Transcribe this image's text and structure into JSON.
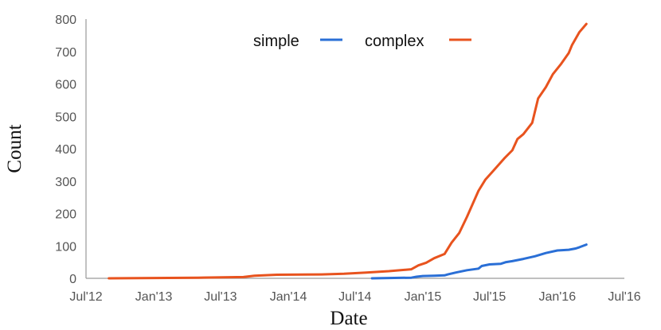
{
  "chart_data": {
    "type": "line",
    "xlabel": "Date",
    "ylabel": "Count",
    "x_ticks": [
      "Jul'12",
      "Jan'13",
      "Jul'13",
      "Jan'14",
      "Jul'14",
      "Jan'15",
      "Jul'15",
      "Jan'16",
      "Jul'16"
    ],
    "x_tick_dates": [
      "2012-07-01",
      "2013-01-01",
      "2013-07-01",
      "2014-01-01",
      "2014-07-01",
      "2015-01-01",
      "2015-07-01",
      "2016-01-01",
      "2016-07-01"
    ],
    "xlim": [
      "2012-07-01",
      "2016-07-01"
    ],
    "y_ticks": [
      0,
      100,
      200,
      300,
      400,
      500,
      600,
      700,
      800
    ],
    "ylim": [
      0,
      800
    ],
    "grid": false,
    "legend_position": "top-center",
    "series": [
      {
        "name": "simple",
        "color": "#2a6fd6",
        "points": [
          [
            "2014-08-16",
            0
          ],
          [
            "2014-10-01",
            1
          ],
          [
            "2014-12-01",
            2
          ],
          [
            "2014-12-15",
            5
          ],
          [
            "2015-01-01",
            7
          ],
          [
            "2015-02-01",
            8
          ],
          [
            "2015-03-01",
            9
          ],
          [
            "2015-03-10",
            12
          ],
          [
            "2015-04-01",
            18
          ],
          [
            "2015-05-01",
            25
          ],
          [
            "2015-06-01",
            30
          ],
          [
            "2015-06-10",
            38
          ],
          [
            "2015-07-01",
            43
          ],
          [
            "2015-08-01",
            45
          ],
          [
            "2015-08-15",
            50
          ],
          [
            "2015-09-01",
            53
          ],
          [
            "2015-10-01",
            60
          ],
          [
            "2015-11-01",
            68
          ],
          [
            "2015-12-01",
            78
          ],
          [
            "2016-01-01",
            86
          ],
          [
            "2016-02-01",
            88
          ],
          [
            "2016-02-20",
            92
          ],
          [
            "2016-03-01",
            96
          ],
          [
            "2016-03-20",
            104
          ]
        ]
      },
      {
        "name": "complex",
        "color": "#e8531e",
        "points": [
          [
            "2012-09-01",
            0
          ],
          [
            "2013-01-01",
            1
          ],
          [
            "2013-05-01",
            2
          ],
          [
            "2013-09-01",
            4
          ],
          [
            "2013-10-01",
            8
          ],
          [
            "2013-12-01",
            11
          ],
          [
            "2014-04-01",
            12
          ],
          [
            "2014-06-01",
            14
          ],
          [
            "2014-08-01",
            18
          ],
          [
            "2014-10-01",
            22
          ],
          [
            "2014-12-01",
            28
          ],
          [
            "2014-12-20",
            40
          ],
          [
            "2015-01-10",
            48
          ],
          [
            "2015-02-01",
            62
          ],
          [
            "2015-03-01",
            75
          ],
          [
            "2015-03-20",
            110
          ],
          [
            "2015-04-10",
            140
          ],
          [
            "2015-05-01",
            190
          ],
          [
            "2015-06-01",
            270
          ],
          [
            "2015-06-20",
            305
          ],
          [
            "2015-07-10",
            330
          ],
          [
            "2015-08-10",
            370
          ],
          [
            "2015-09-01",
            395
          ],
          [
            "2015-09-15",
            430
          ],
          [
            "2015-10-01",
            445
          ],
          [
            "2015-10-25",
            480
          ],
          [
            "2015-11-10",
            555
          ],
          [
            "2015-12-01",
            590
          ],
          [
            "2015-12-20",
            630
          ],
          [
            "2016-01-10",
            660
          ],
          [
            "2016-02-01",
            695
          ],
          [
            "2016-02-10",
            720
          ],
          [
            "2016-03-01",
            760
          ],
          [
            "2016-03-20",
            785
          ]
        ]
      }
    ]
  }
}
